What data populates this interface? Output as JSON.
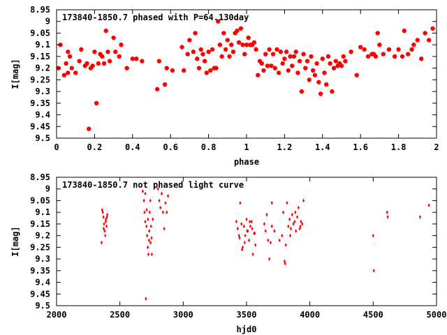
{
  "colors": {
    "points": "#ff0000",
    "axes": "#000000",
    "background": "#ffffff"
  },
  "chart_data": [
    {
      "type": "scatter",
      "title": "173840-1850.7 phased with P=64.130day",
      "xlabel": "phase",
      "ylabel": "I[mag]",
      "xlim": [
        0,
        2
      ],
      "ylim": [
        9.5,
        8.95
      ],
      "y_inverted": true,
      "xticks": [
        "0",
        "0.2",
        "0.4",
        "0.6",
        "0.8",
        "1",
        "1.2",
        "1.4",
        "1.6",
        "1.8",
        "2"
      ],
      "yticks": [
        "8.95",
        "9",
        "9.05",
        "9.1",
        "9.15",
        "9.2",
        "9.25",
        "9.3",
        "9.35",
        "9.4",
        "9.45",
        "9.5"
      ],
      "grid": false,
      "marker": "filled-circle",
      "series": [
        {
          "x": [
            0.01,
            0.02,
            0.04,
            0.05,
            0.06,
            0.06,
            0.07,
            0.08,
            0.1,
            0.12,
            0.13,
            0.15,
            0.16,
            0.17,
            0.18,
            0.19,
            0.2,
            0.21,
            0.22,
            0.23,
            0.24,
            0.25,
            0.26,
            0.27,
            0.28,
            0.3,
            0.31,
            0.33,
            0.34,
            0.37,
            0.4,
            0.42,
            0.45,
            0.53,
            0.54,
            0.57,
            0.58,
            0.61,
            0.66,
            0.67,
            0.69,
            0.7,
            0.72,
            0.73,
            0.74,
            0.75,
            0.76,
            0.77,
            0.78,
            0.79,
            0.8,
            0.81,
            0.82,
            0.83,
            0.84,
            0.85,
            0.86,
            0.87,
            0.88,
            0.89,
            0.9,
            0.91,
            0.92,
            0.93,
            0.94,
            0.95,
            0.96,
            0.97,
            0.98,
            0.99,
            1.0,
            1.01,
            1.02,
            1.03,
            1.04,
            1.05,
            1.06,
            1.07,
            1.08,
            1.09,
            1.1,
            1.11,
            1.12,
            1.13,
            1.14,
            1.15,
            1.16,
            1.17,
            1.18,
            1.19,
            1.2,
            1.21,
            1.22,
            1.23,
            1.24,
            1.25,
            1.26,
            1.27,
            1.28,
            1.29,
            1.3,
            1.31,
            1.32,
            1.33,
            1.34,
            1.35,
            1.36,
            1.37,
            1.38,
            1.39,
            1.4,
            1.41,
            1.42,
            1.43,
            1.44,
            1.45,
            1.46,
            1.47,
            1.48,
            1.49,
            1.5,
            1.51,
            1.52,
            1.55,
            1.58,
            1.6,
            1.62,
            1.64,
            1.66,
            1.67,
            1.68,
            1.69,
            1.7,
            1.72,
            1.75,
            1.78,
            1.8,
            1.82,
            1.83,
            1.85,
            1.87,
            1.88,
            1.9,
            1.92,
            1.94,
            1.96,
            1.98
          ],
          "y": [
            9.2,
            9.1,
            9.23,
            9.18,
            9.22,
            9.13,
            9.15,
            9.2,
            9.22,
            9.17,
            9.12,
            9.19,
            9.18,
            9.46,
            9.2,
            9.19,
            9.13,
            9.35,
            9.18,
            9.14,
            9.15,
            9.18,
            9.04,
            9.13,
            9.17,
            9.07,
            9.13,
            9.15,
            9.1,
            9.2,
            9.16,
            9.16,
            9.17,
            9.29,
            9.17,
            9.27,
            9.2,
            9.21,
            9.11,
            9.21,
            9.14,
            9.08,
            9.13,
            9.05,
            9.16,
            9.2,
            9.12,
            9.14,
            9.17,
            9.22,
            9.13,
            9.21,
            9.12,
            9.2,
            9.2,
            9.0,
            9.1,
            9.15,
            9.05,
            9.12,
            9.08,
            9.15,
            9.1,
            9.13,
            9.05,
            9.04,
            9.09,
            9.03,
            9.1,
            9.14,
            9.1,
            9.07,
            9.1,
            9.1,
            9.09,
            9.12,
            9.23,
            9.17,
            9.18,
            9.21,
            9.14,
            9.19,
            9.12,
            9.19,
            9.14,
            9.2,
            9.12,
            9.22,
            9.13,
            9.18,
            9.16,
            9.13,
            9.21,
            9.15,
            9.19,
            9.15,
            9.13,
            9.22,
            9.17,
            9.3,
            9.14,
            9.2,
            9.17,
            9.25,
            9.15,
            9.21,
            9.23,
            9.18,
            9.26,
            9.31,
            9.16,
            9.22,
            9.27,
            9.15,
            9.18,
            9.3,
            9.2,
            9.17,
            9.19,
            9.18,
            9.19,
            9.15,
            9.17,
            9.13,
            9.23,
            9.11,
            9.12,
            9.15,
            9.14,
            9.14,
            9.15,
            9.05,
            9.1,
            9.14,
            9.12,
            9.15,
            9.12,
            9.15,
            9.04,
            9.14,
            9.12,
            9.1,
            9.08,
            9.16,
            9.05,
            9.08,
            9.03
          ]
        }
      ]
    },
    {
      "type": "scatter",
      "title": "173840-1850.7 not phased light curve",
      "xlabel": "hjd0",
      "ylabel": "I[mag]",
      "xlim": [
        2000,
        5000
      ],
      "ylim": [
        9.5,
        8.95
      ],
      "y_inverted": true,
      "xticks": [
        "2000",
        "2500",
        "3000",
        "3500",
        "4000",
        "4500",
        "5000"
      ],
      "yticks": [
        "8.95",
        "9",
        "9.05",
        "9.1",
        "9.15",
        "9.2",
        "9.25",
        "9.3",
        "9.35",
        "9.4",
        "9.45",
        "9.5"
      ],
      "grid": false,
      "marker": "small-diamond",
      "series": [
        {
          "x": [
            2355,
            2365,
            2370,
            2375,
            2380,
            2385,
            2390,
            2395,
            2400,
            2360,
            2372,
            2388,
            2398,
            2680,
            2690,
            2695,
            2700,
            2705,
            2710,
            2715,
            2720,
            2725,
            2730,
            2735,
            2740,
            2745,
            2750,
            2760,
            2700,
            2712,
            2722,
            2732,
            2742,
            2752,
            2800,
            2810,
            2820,
            2830,
            2840,
            2850,
            2860,
            2870,
            2880,
            3420,
            3430,
            3440,
            3450,
            3460,
            3470,
            3480,
            3490,
            3500,
            3510,
            3520,
            3530,
            3540,
            3550,
            3560,
            3570,
            3445,
            3465,
            3485,
            3505,
            3525,
            3545,
            3565,
            3640,
            3650,
            3660,
            3670,
            3680,
            3690,
            3700,
            3700,
            3720,
            3760,
            3780,
            3790,
            3800,
            3810,
            3820,
            3830,
            3840,
            3850,
            3860,
            3870,
            3880,
            3890,
            3900,
            3910,
            3920,
            3930,
            3940,
            3950,
            3805,
            3845,
            3885,
            3925,
            4500,
            4505,
            4610,
            4615,
            4870,
            4940
          ],
          "y": [
            9.23,
            9.1,
            9.12,
            9.15,
            9.18,
            9.2,
            9.13,
            9.16,
            9.11,
            9.09,
            9.17,
            9.14,
            9.12,
            9.01,
            9.05,
            9.1,
            9.14,
            9.47,
            9.16,
            9.2,
            9.25,
            9.28,
            9.22,
            9.1,
            9.05,
            9.16,
            9.21,
            9.13,
            9.02,
            9.09,
            9.13,
            9.18,
            9.23,
            9.28,
            9.0,
            9.05,
            9.08,
            9.02,
            9.1,
            9.17,
            9.06,
            9.1,
            9.03,
            9.14,
            9.17,
            9.2,
            9.06,
            9.15,
            9.25,
            9.16,
            9.2,
            9.13,
            9.18,
            9.22,
            9.16,
            9.14,
            9.28,
            9.19,
            9.24,
            9.21,
            9.26,
            9.23,
            9.18,
            9.14,
            9.17,
            9.19,
            9.15,
            9.18,
            9.11,
            9.22,
            9.3,
            9.23,
            9.06,
            9.16,
            9.18,
            9.22,
            9.2,
            9.1,
            9.31,
            9.24,
            9.06,
            9.16,
            9.13,
            9.17,
            9.11,
            9.15,
            9.14,
            9.18,
            9.12,
            9.08,
            9.17,
            9.14,
            9.15,
            9.05,
            9.32,
            9.2,
            9.1,
            9.16,
            9.2,
            9.35,
            9.1,
            9.12,
            9.12,
            9.07
          ]
        }
      ]
    }
  ]
}
